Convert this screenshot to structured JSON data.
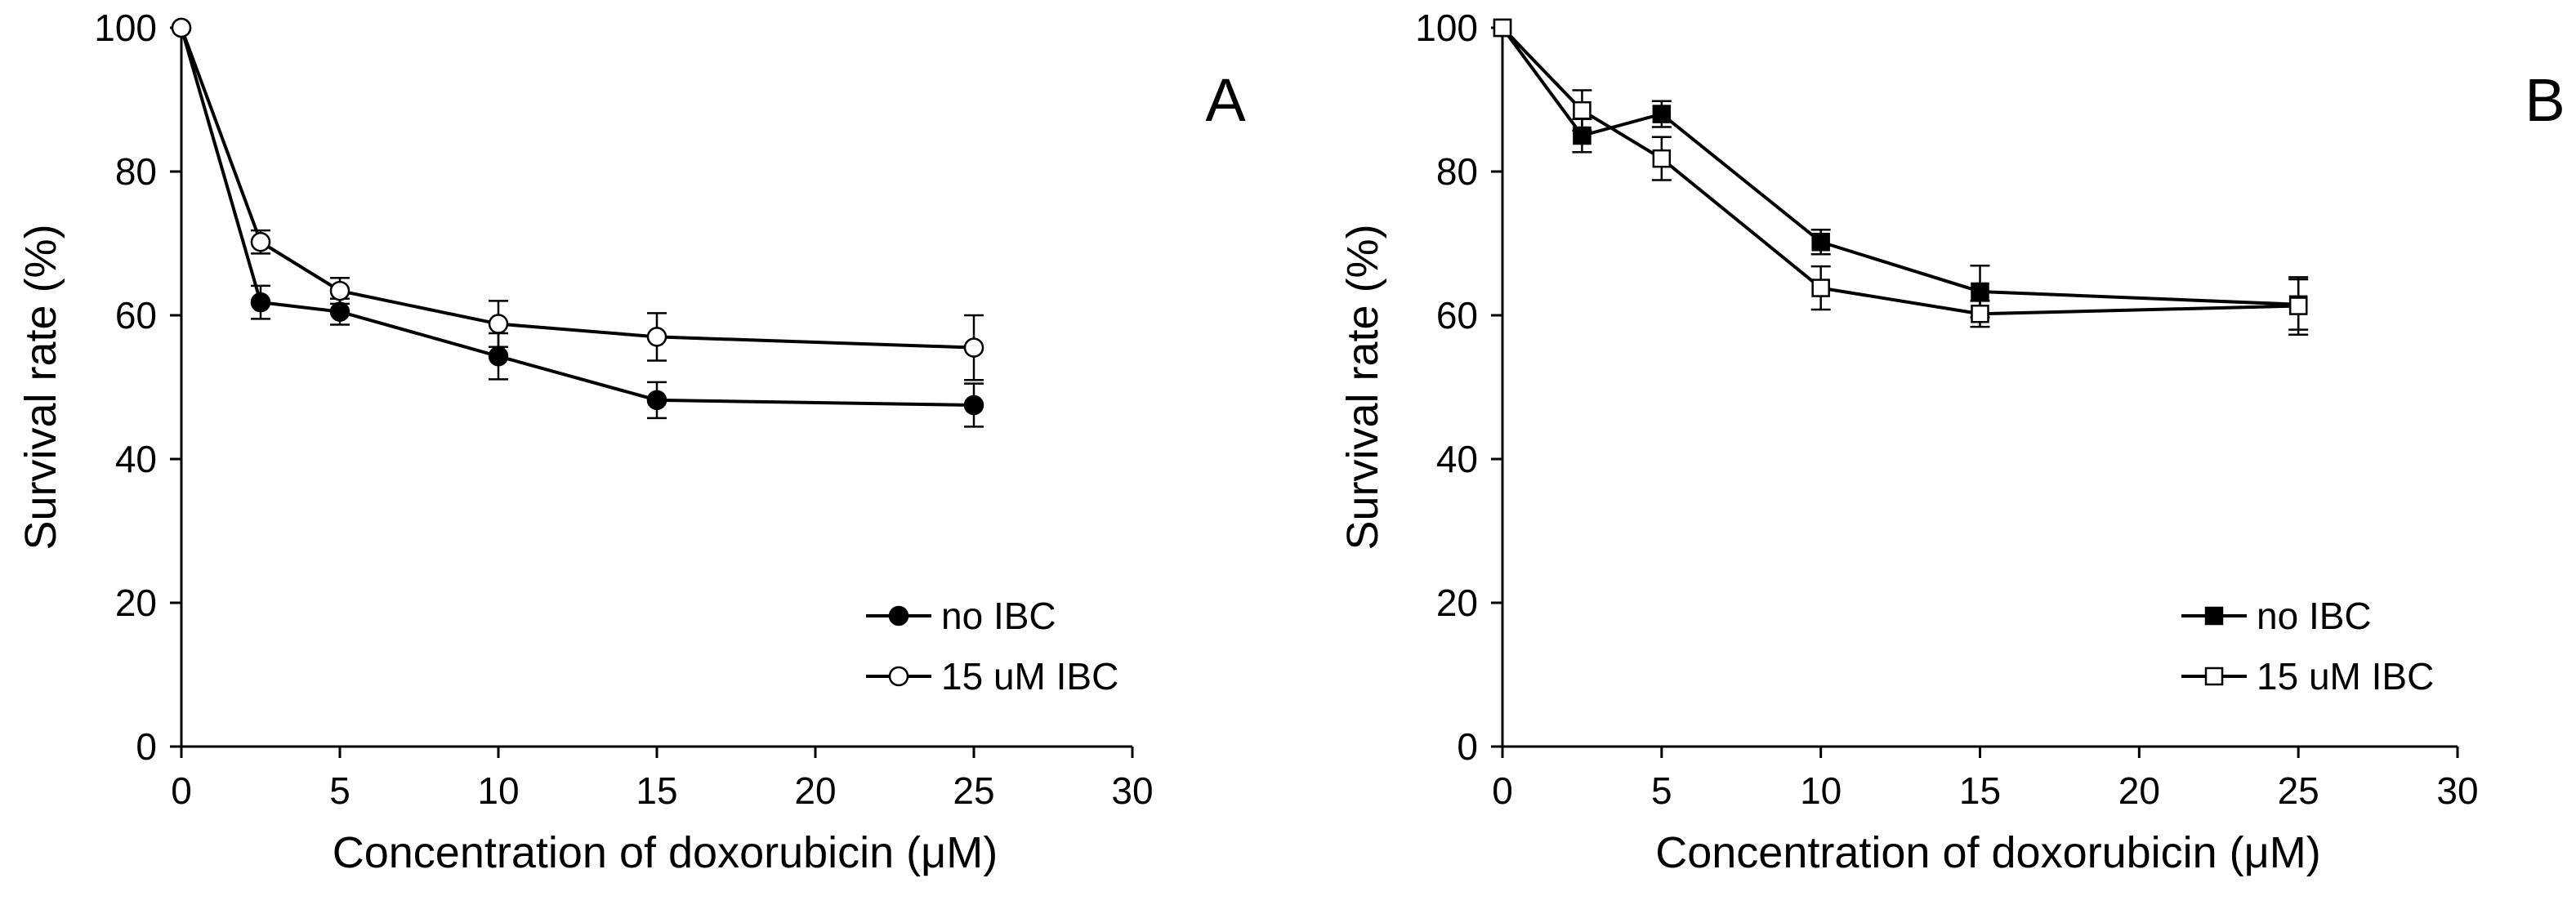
{
  "chart_data": [
    {
      "type": "line",
      "panel_label": "A",
      "xlabel": "Concentration  of doxorubicin  (μM)",
      "ylabel": "Survival rate (%)",
      "xlim": [
        0,
        30
      ],
      "ylim": [
        0,
        100
      ],
      "xticks": [
        0,
        5,
        10,
        15,
        20,
        25,
        30
      ],
      "yticks": [
        0,
        20,
        40,
        60,
        80,
        100
      ],
      "x_tick_labels": [
        "0",
        "5",
        "10",
        "15",
        "20",
        "25",
        "30"
      ],
      "y_tick_labels": [
        "0",
        "20",
        "40",
        "60",
        "80",
        "100"
      ],
      "grid": false,
      "legend_position": "bottom-right",
      "series": [
        {
          "name": "no IBC",
          "marker": "circle",
          "fill": "#000000",
          "x": [
            0,
            2.5,
            5,
            10,
            15,
            25
          ],
          "y": [
            100,
            61.8,
            60.5,
            54.3,
            48.2,
            47.5
          ],
          "error": [
            0,
            2.3,
            1.8,
            3.2,
            2.5,
            3.0
          ]
        },
        {
          "name": "15 uM IBC",
          "marker": "circle",
          "fill": "#ffffff",
          "x": [
            0,
            2.5,
            5,
            10,
            15,
            25
          ],
          "y": [
            100,
            70.2,
            63.4,
            58.8,
            57.0,
            55.5
          ],
          "error": [
            0,
            1.6,
            1.8,
            3.2,
            3.3,
            4.5
          ]
        }
      ]
    },
    {
      "type": "line",
      "panel_label": "B",
      "xlabel": "Concentration  of doxorubicin  (μM)",
      "ylabel": "Survival rate (%)",
      "xlim": [
        0,
        30
      ],
      "ylim": [
        0,
        100
      ],
      "xticks": [
        0,
        5,
        10,
        15,
        20,
        25,
        30
      ],
      "yticks": [
        0,
        20,
        40,
        60,
        80,
        100
      ],
      "x_tick_labels": [
        "0",
        "5",
        "10",
        "15",
        "20",
        "25",
        "30"
      ],
      "y_tick_labels": [
        "0",
        "20",
        "40",
        "60",
        "80",
        "100"
      ],
      "grid": false,
      "legend_position": "bottom-right",
      "series": [
        {
          "name": "no IBC",
          "marker": "square",
          "fill": "#000000",
          "x": [
            0,
            2.5,
            5,
            10,
            15,
            25
          ],
          "y": [
            100,
            85.0,
            88.0,
            70.2,
            63.3,
            61.5
          ],
          "error": [
            0,
            2.3,
            1.8,
            1.7,
            3.6,
            3.5
          ]
        },
        {
          "name": "15 uM IBC",
          "marker": "square",
          "fill": "#ffffff",
          "x": [
            0,
            2.5,
            5,
            10,
            15,
            25
          ],
          "y": [
            100,
            88.5,
            81.8,
            63.8,
            60.2,
            61.3
          ],
          "error": [
            0,
            2.8,
            3.0,
            3.0,
            1.8,
            4.0
          ]
        }
      ]
    }
  ]
}
